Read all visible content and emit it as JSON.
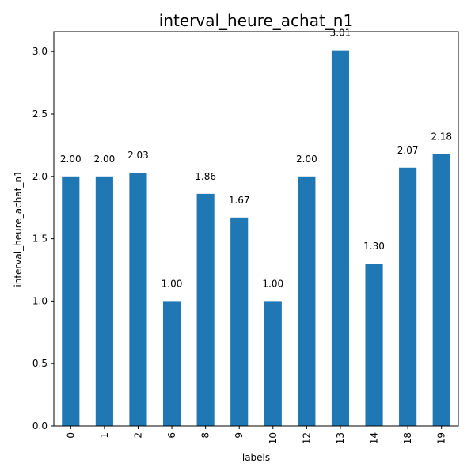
{
  "chart_data": {
    "type": "bar",
    "title": "interval_heure_achat_n1",
    "xlabel": "labels",
    "ylabel": "interval_heure_achat_n1",
    "categories": [
      "0",
      "1",
      "2",
      "6",
      "8",
      "9",
      "10",
      "12",
      "13",
      "14",
      "18",
      "19"
    ],
    "values": [
      2.0,
      2.0,
      2.03,
      1.0,
      1.86,
      1.67,
      1.0,
      2.0,
      3.01,
      1.3,
      2.07,
      2.18
    ],
    "data_labels": [
      "2.00",
      "2.00",
      "2.03",
      "1.00",
      "1.86",
      "1.67",
      "1.00",
      "2.00",
      "3.01",
      "1.30",
      "2.07",
      "2.18"
    ],
    "yticks": [
      "0.0",
      "0.5",
      "1.0",
      "1.5",
      "2.0",
      "2.5",
      "3.0"
    ],
    "ylim": [
      0,
      3.16
    ],
    "grid": false,
    "bar_color": "#1f77b4"
  }
}
